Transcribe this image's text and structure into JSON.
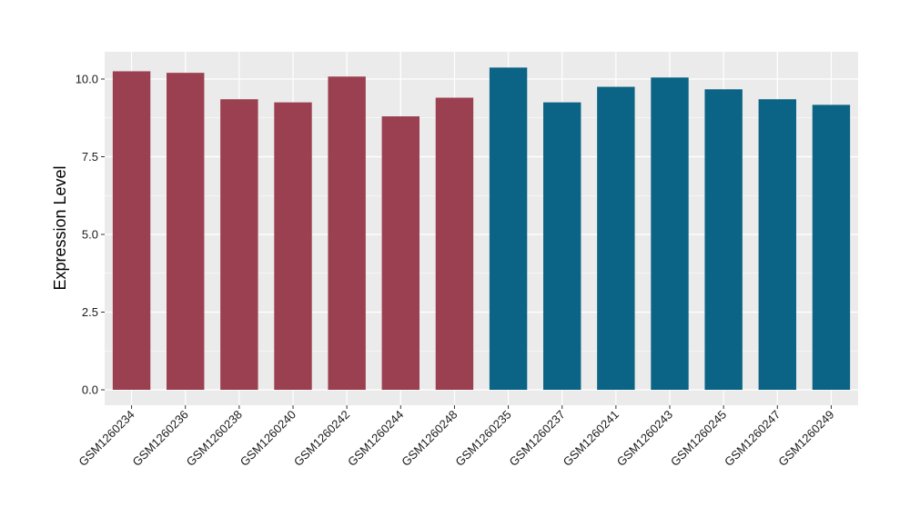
{
  "chart_data": {
    "type": "bar",
    "title": "",
    "xlabel": "",
    "ylabel": "Expression Level",
    "ylim": [
      0,
      10.85
    ],
    "yticks": [
      0,
      2.5,
      5,
      7.5,
      10
    ],
    "ytick_labels": [
      "0.0",
      "2.5",
      "5.0",
      "7.5",
      "10.0"
    ],
    "grid": true,
    "legend": "none",
    "categories": [
      "GSM1260234",
      "GSM1260236",
      "GSM1260238",
      "GSM1260240",
      "GSM1260242",
      "GSM1260244",
      "GSM1260248",
      "GSM1260235",
      "GSM1260237",
      "GSM1260241",
      "GSM1260243",
      "GSM1260245",
      "GSM1260247",
      "GSM1260249"
    ],
    "values": [
      10.25,
      10.2,
      9.35,
      9.25,
      10.08,
      8.8,
      9.4,
      10.37,
      9.25,
      9.75,
      10.05,
      9.67,
      9.35,
      9.17
    ],
    "groups": [
      0,
      0,
      0,
      0,
      0,
      0,
      0,
      1,
      1,
      1,
      1,
      1,
      1,
      1
    ],
    "group_colors": [
      "#9b4050",
      "#0b6485"
    ],
    "panel_background": "#ebebeb",
    "grid_color": "#ffffff"
  }
}
